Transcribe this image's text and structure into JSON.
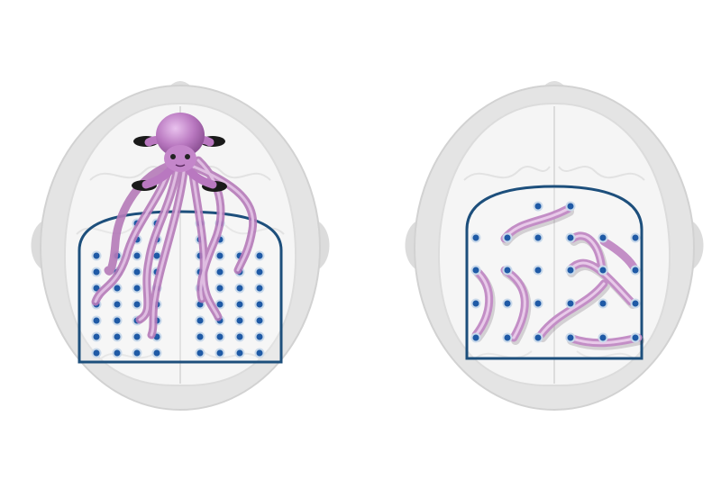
{
  "figure": {
    "background_color": "#ffffff",
    "colors": {
      "head": "#e3e3e3",
      "head_edge": "#cfcfcf",
      "brain": "#f4f4f4",
      "brain_line": "#e0e0e0",
      "frame": "#1d4f7c",
      "electrode_ring": "#c9d9ea",
      "electrode_dot": "#1f5aa6",
      "tentacle": "#c792c9",
      "tentacle_light": "#e6c4e6",
      "octopus": "#b978c0",
      "shadow": "#111111"
    },
    "panels": [
      {
        "name": "grid-with-octopus",
        "description_icon": "octopus-icon",
        "electrode_columns": 8,
        "electrode_rows_full": 6
      },
      {
        "name": "sparse-grid-with-worms",
        "electrode_columns": 6,
        "electrode_rows": 5
      }
    ]
  }
}
